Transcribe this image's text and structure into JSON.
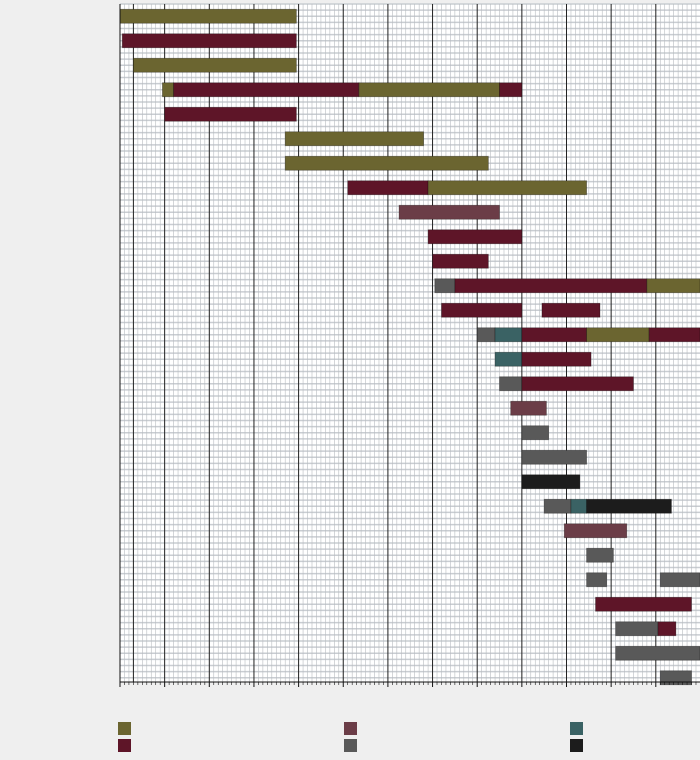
{
  "chart_data": {
    "type": "gantt",
    "title": "",
    "xlabel": "",
    "ylabel": "",
    "x_range": [
      0,
      130
    ],
    "major_tick_every": 10,
    "minor_tick_every": 1,
    "grid": true,
    "legend_position": "bottom",
    "colors": {
      "olive": "#6b6530",
      "maroon": "#5e1528",
      "mauve": "#6b3d47",
      "gray": "#595959",
      "teal": "#3a6264",
      "black": "#1c1c1c"
    },
    "legend": [
      {
        "color": "olive",
        "label": ""
      },
      {
        "color": "maroon",
        "label": ""
      },
      {
        "color": "mauve",
        "label": ""
      },
      {
        "color": "gray",
        "label": ""
      },
      {
        "color": "teal",
        "label": ""
      },
      {
        "color": "black",
        "label": ""
      }
    ],
    "rows": [
      {
        "segments": [
          {
            "start": 0,
            "end": 39.5,
            "color": "olive"
          }
        ]
      },
      {
        "segments": [
          {
            "start": 0.5,
            "end": 39.5,
            "color": "maroon"
          }
        ]
      },
      {
        "segments": [
          {
            "start": 3,
            "end": 39.5,
            "color": "olive"
          }
        ]
      },
      {
        "segments": [
          {
            "start": 9.5,
            "end": 12,
            "color": "olive"
          },
          {
            "start": 12,
            "end": 53.5,
            "color": "maroon"
          },
          {
            "start": 53.5,
            "end": 85,
            "color": "olive"
          },
          {
            "start": 85,
            "end": 90,
            "color": "maroon"
          }
        ]
      },
      {
        "segments": [
          {
            "start": 10,
            "end": 39.5,
            "color": "maroon"
          }
        ]
      },
      {
        "segments": [
          {
            "start": 37,
            "end": 68,
            "color": "olive"
          }
        ]
      },
      {
        "segments": [
          {
            "start": 37,
            "end": 82.5,
            "color": "olive"
          }
        ]
      },
      {
        "segments": [
          {
            "start": 51,
            "end": 69,
            "color": "maroon"
          },
          {
            "start": 69,
            "end": 104.5,
            "color": "olive"
          }
        ]
      },
      {
        "segments": [
          {
            "start": 62.5,
            "end": 85,
            "color": "mauve"
          }
        ]
      },
      {
        "segments": [
          {
            "start": 69,
            "end": 90,
            "color": "maroon"
          }
        ]
      },
      {
        "segments": [
          {
            "start": 70,
            "end": 82.5,
            "color": "maroon"
          }
        ]
      },
      {
        "segments": [
          {
            "start": 70.5,
            "end": 75,
            "color": "gray"
          },
          {
            "start": 75,
            "end": 118,
            "color": "maroon"
          },
          {
            "start": 118,
            "end": 130,
            "color": "olive"
          }
        ]
      },
      {
        "segments": [
          {
            "start": 72,
            "end": 90,
            "color": "maroon"
          },
          {
            "start": 94.5,
            "end": 107.5,
            "color": "maroon"
          }
        ]
      },
      {
        "segments": [
          {
            "start": 80,
            "end": 84,
            "color": "gray"
          },
          {
            "start": 84,
            "end": 90,
            "color": "teal"
          },
          {
            "start": 90,
            "end": 104.5,
            "color": "maroon"
          },
          {
            "start": 104.5,
            "end": 118.5,
            "color": "olive"
          },
          {
            "start": 118.5,
            "end": 130,
            "color": "maroon"
          }
        ]
      },
      {
        "segments": [
          {
            "start": 84,
            "end": 90,
            "color": "teal"
          },
          {
            "start": 90,
            "end": 105.5,
            "color": "maroon"
          }
        ]
      },
      {
        "segments": [
          {
            "start": 85,
            "end": 90,
            "color": "gray"
          },
          {
            "start": 90,
            "end": 115,
            "color": "maroon"
          }
        ]
      },
      {
        "segments": [
          {
            "start": 87.5,
            "end": 95.5,
            "color": "mauve"
          }
        ]
      },
      {
        "segments": [
          {
            "start": 90,
            "end": 96,
            "color": "gray"
          }
        ]
      },
      {
        "segments": [
          {
            "start": 90,
            "end": 104.5,
            "color": "gray"
          }
        ]
      },
      {
        "segments": [
          {
            "start": 90,
            "end": 103,
            "color": "black"
          }
        ]
      },
      {
        "segments": [
          {
            "start": 95,
            "end": 101,
            "color": "gray"
          },
          {
            "start": 101,
            "end": 104.5,
            "color": "teal"
          },
          {
            "start": 104.5,
            "end": 123.5,
            "color": "black"
          }
        ]
      },
      {
        "segments": [
          {
            "start": 99.5,
            "end": 113.5,
            "color": "mauve"
          }
        ]
      },
      {
        "segments": [
          {
            "start": 104.5,
            "end": 110.5,
            "color": "gray"
          }
        ]
      },
      {
        "segments": [
          {
            "start": 104.5,
            "end": 109,
            "color": "gray"
          },
          {
            "start": 121,
            "end": 130,
            "color": "gray"
          }
        ]
      },
      {
        "segments": [
          {
            "start": 106.5,
            "end": 128,
            "color": "maroon"
          }
        ]
      },
      {
        "segments": [
          {
            "start": 111,
            "end": 120.5,
            "color": "gray"
          },
          {
            "start": 120.5,
            "end": 124.5,
            "color": "maroon"
          }
        ]
      },
      {
        "segments": [
          {
            "start": 111,
            "end": 130,
            "color": "gray"
          }
        ]
      },
      {
        "segments": [
          {
            "start": 121,
            "end": 128,
            "color": "gray"
          }
        ]
      }
    ]
  }
}
